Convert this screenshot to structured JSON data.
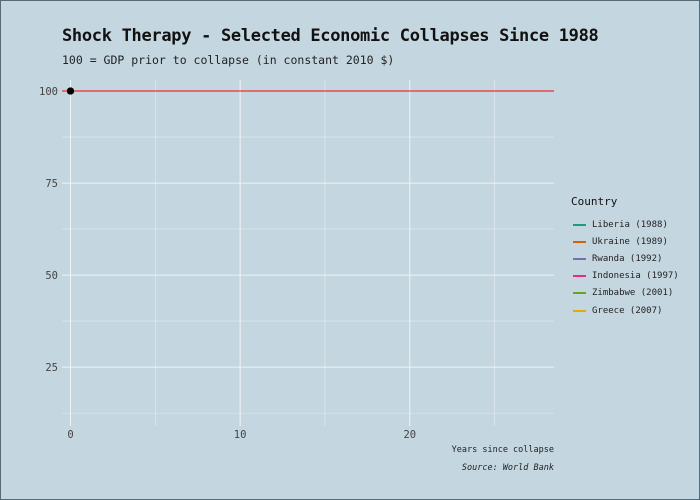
{
  "chart_data": {
    "type": "line",
    "title": "Shock Therapy - Selected Economic Collapses Since 1988",
    "subtitle": "100 = GDP prior to collapse (in constant 2010 $)",
    "xlabel": "Years since collapse",
    "ylabel": "",
    "caption": "Source: World Bank",
    "xlim": [
      -0.5,
      28.5
    ],
    "ylim": [
      9,
      103
    ],
    "x_ticks": [
      0,
      10,
      20
    ],
    "y_ticks": [
      25,
      50,
      75,
      100
    ],
    "grid": true,
    "legend_title": "Country",
    "legend_position": "right",
    "reference_line": {
      "y": 100,
      "color": "#ff0000"
    },
    "series": [
      {
        "name": "Liberia (1988)",
        "color": "#1b9e77",
        "points": [
          {
            "x": 0,
            "y": 100
          }
        ]
      },
      {
        "name": "Ukraine (1989)",
        "color": "#d95f02",
        "points": [
          {
            "x": 0,
            "y": 100
          }
        ]
      },
      {
        "name": "Rwanda (1992)",
        "color": "#7570b3",
        "points": [
          {
            "x": 0,
            "y": 100
          }
        ]
      },
      {
        "name": "Indonesia (1997)",
        "color": "#e7298a",
        "points": [
          {
            "x": 0,
            "y": 100
          }
        ]
      },
      {
        "name": "Zimbabwe (2001)",
        "color": "#66a61e",
        "points": [
          {
            "x": 0,
            "y": 100
          }
        ]
      },
      {
        "name": "Greece (2007)",
        "color": "#e6ab02",
        "points": [
          {
            "x": 0,
            "y": 100
          }
        ]
      }
    ]
  }
}
